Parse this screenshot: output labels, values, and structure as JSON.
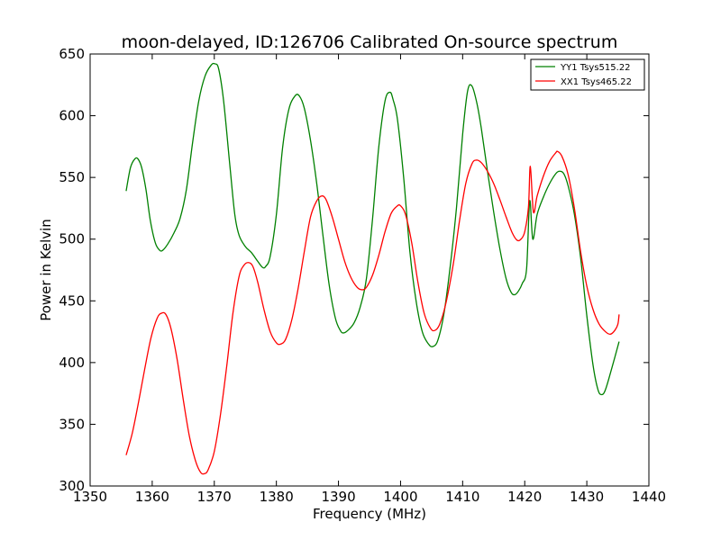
{
  "chart_data": {
    "type": "line",
    "title": "moon-delayed, ID:126706 Calibrated On-source spectrum",
    "xlabel": "Frequency (MHz)",
    "ylabel": "Power in Kelvin",
    "xlim": [
      1350,
      1440
    ],
    "ylim": [
      300,
      650
    ],
    "xticks": [
      "1350",
      "1360",
      "1370",
      "1380",
      "1390",
      "1400",
      "1410",
      "1420",
      "1430",
      "1440"
    ],
    "yticks": [
      "300",
      "350",
      "400",
      "450",
      "500",
      "550",
      "600",
      "650"
    ],
    "grid": false,
    "legend_position": "top-right",
    "series": [
      {
        "name": "YY1 Tsys515.22",
        "color": "#008000",
        "points": [
          [
            1355.8,
            539
          ],
          [
            1356.5,
            558
          ],
          [
            1357.2,
            565
          ],
          [
            1357.7,
            565
          ],
          [
            1358.3,
            558
          ],
          [
            1359.0,
            540
          ],
          [
            1359.7,
            515
          ],
          [
            1360.5,
            497
          ],
          [
            1361.2,
            491
          ],
          [
            1361.7,
            491
          ],
          [
            1362.5,
            496
          ],
          [
            1363.5,
            505
          ],
          [
            1364.5,
            517
          ],
          [
            1365.5,
            540
          ],
          [
            1366.5,
            578
          ],
          [
            1367.5,
            612
          ],
          [
            1368.5,
            632
          ],
          [
            1369.5,
            641
          ],
          [
            1370.1,
            642
          ],
          [
            1370.7,
            638
          ],
          [
            1371.5,
            612
          ],
          [
            1372.5,
            560
          ],
          [
            1373.3,
            520
          ],
          [
            1374.0,
            503
          ],
          [
            1375.0,
            494
          ],
          [
            1376.0,
            489
          ],
          [
            1377.0,
            482
          ],
          [
            1377.8,
            477
          ],
          [
            1378.3,
            478
          ],
          [
            1379.0,
            486
          ],
          [
            1380.0,
            520
          ],
          [
            1381.0,
            574
          ],
          [
            1382.0,
            605
          ],
          [
            1383.0,
            616
          ],
          [
            1383.7,
            616
          ],
          [
            1384.5,
            606
          ],
          [
            1385.5,
            580
          ],
          [
            1386.5,
            545
          ],
          [
            1387.5,
            503
          ],
          [
            1388.5,
            463
          ],
          [
            1389.5,
            436
          ],
          [
            1390.3,
            426
          ],
          [
            1390.8,
            424
          ],
          [
            1391.5,
            426
          ],
          [
            1392.5,
            432
          ],
          [
            1393.5,
            445
          ],
          [
            1394.5,
            468
          ],
          [
            1395.5,
            517
          ],
          [
            1396.5,
            575
          ],
          [
            1397.5,
            612
          ],
          [
            1398.3,
            619
          ],
          [
            1398.8,
            613
          ],
          [
            1399.5,
            597
          ],
          [
            1400.5,
            550
          ],
          [
            1401.5,
            490
          ],
          [
            1402.5,
            450
          ],
          [
            1403.5,
            425
          ],
          [
            1404.5,
            415
          ],
          [
            1405.2,
            413
          ],
          [
            1406.0,
            418
          ],
          [
            1407.0,
            440
          ],
          [
            1408.0,
            478
          ],
          [
            1409.0,
            525
          ],
          [
            1410.0,
            585
          ],
          [
            1410.8,
            620
          ],
          [
            1411.5,
            624
          ],
          [
            1412.3,
            610
          ],
          [
            1413.0,
            590
          ],
          [
            1414.0,
            555
          ],
          [
            1415.0,
            522
          ],
          [
            1416.0,
            492
          ],
          [
            1417.0,
            468
          ],
          [
            1417.8,
            457
          ],
          [
            1418.4,
            455
          ],
          [
            1419.0,
            458
          ],
          [
            1419.6,
            464
          ],
          [
            1420.3,
            476
          ],
          [
            1420.8,
            531
          ],
          [
            1421.3,
            500
          ],
          [
            1422.0,
            520
          ],
          [
            1423.0,
            534
          ],
          [
            1424.0,
            545
          ],
          [
            1425.0,
            553
          ],
          [
            1425.6,
            555
          ],
          [
            1426.3,
            553
          ],
          [
            1427.0,
            543
          ],
          [
            1428.0,
            520
          ],
          [
            1429.0,
            485
          ],
          [
            1430.0,
            438
          ],
          [
            1431.0,
            398
          ],
          [
            1431.8,
            378
          ],
          [
            1432.4,
            374
          ],
          [
            1433.0,
            378
          ],
          [
            1434.0,
            395
          ],
          [
            1435.2,
            417
          ]
        ]
      },
      {
        "name": "XX1 Tsys465.22",
        "color": "#ff0000",
        "points": [
          [
            1355.8,
            325
          ],
          [
            1356.8,
            343
          ],
          [
            1357.8,
            368
          ],
          [
            1358.8,
            395
          ],
          [
            1359.8,
            420
          ],
          [
            1360.8,
            436
          ],
          [
            1361.5,
            440
          ],
          [
            1362.2,
            439
          ],
          [
            1363.0,
            428
          ],
          [
            1364.0,
            403
          ],
          [
            1365.0,
            370
          ],
          [
            1366.0,
            340
          ],
          [
            1367.0,
            320
          ],
          [
            1367.8,
            311
          ],
          [
            1368.4,
            310
          ],
          [
            1369.0,
            313
          ],
          [
            1370.0,
            328
          ],
          [
            1371.0,
            358
          ],
          [
            1372.0,
            397
          ],
          [
            1373.0,
            440
          ],
          [
            1374.0,
            470
          ],
          [
            1374.8,
            479
          ],
          [
            1375.5,
            481
          ],
          [
            1376.2,
            478
          ],
          [
            1377.0,
            465
          ],
          [
            1378.0,
            443
          ],
          [
            1379.0,
            425
          ],
          [
            1380.0,
            416
          ],
          [
            1380.7,
            415
          ],
          [
            1381.5,
            419
          ],
          [
            1382.5,
            435
          ],
          [
            1383.5,
            460
          ],
          [
            1384.5,
            490
          ],
          [
            1385.5,
            518
          ],
          [
            1386.5,
            531
          ],
          [
            1387.3,
            535
          ],
          [
            1388.0,
            532
          ],
          [
            1389.0,
            518
          ],
          [
            1390.0,
            500
          ],
          [
            1391.0,
            482
          ],
          [
            1392.0,
            469
          ],
          [
            1393.0,
            461
          ],
          [
            1393.8,
            459
          ],
          [
            1394.5,
            461
          ],
          [
            1395.5,
            471
          ],
          [
            1396.5,
            487
          ],
          [
            1397.5,
            506
          ],
          [
            1398.5,
            521
          ],
          [
            1399.5,
            527
          ],
          [
            1400.0,
            527
          ],
          [
            1400.8,
            520
          ],
          [
            1401.8,
            497
          ],
          [
            1402.8,
            465
          ],
          [
            1403.8,
            440
          ],
          [
            1404.8,
            428
          ],
          [
            1405.5,
            426
          ],
          [
            1406.3,
            431
          ],
          [
            1407.3,
            448
          ],
          [
            1408.5,
            480
          ],
          [
            1409.5,
            515
          ],
          [
            1410.5,
            545
          ],
          [
            1411.5,
            561
          ],
          [
            1412.2,
            564
          ],
          [
            1413.0,
            562
          ],
          [
            1414.0,
            555
          ],
          [
            1415.0,
            545
          ],
          [
            1416.0,
            532
          ],
          [
            1417.0,
            518
          ],
          [
            1418.0,
            505
          ],
          [
            1418.8,
            499
          ],
          [
            1419.4,
            500
          ],
          [
            1420.0,
            506
          ],
          [
            1420.6,
            526
          ],
          [
            1420.9,
            559
          ],
          [
            1421.4,
            522
          ],
          [
            1422.0,
            535
          ],
          [
            1423.0,
            551
          ],
          [
            1424.0,
            563
          ],
          [
            1425.0,
            570
          ],
          [
            1425.3,
            571
          ],
          [
            1426.0,
            567
          ],
          [
            1427.0,
            552
          ],
          [
            1428.0,
            525
          ],
          [
            1429.0,
            490
          ],
          [
            1430.0,
            462
          ],
          [
            1431.0,
            443
          ],
          [
            1432.0,
            431
          ],
          [
            1433.0,
            425
          ],
          [
            1433.8,
            423
          ],
          [
            1434.5,
            426
          ],
          [
            1435.0,
            431
          ],
          [
            1435.2,
            439
          ]
        ]
      }
    ]
  }
}
